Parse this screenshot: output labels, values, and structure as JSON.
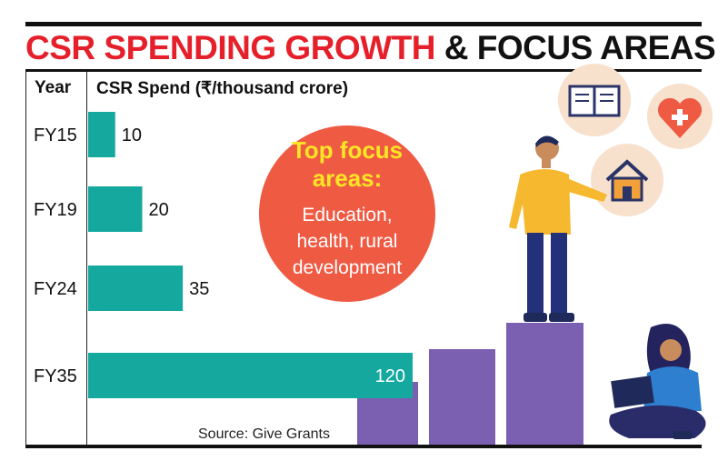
{
  "title": {
    "highlight": "CSR SPENDING GROWTH",
    "rest": " & FOCUS AREAS"
  },
  "table": {
    "year_header": "Year",
    "spend_header": "CSR Spend (₹/thousand crore)"
  },
  "focus": {
    "title_line1": "Top focus",
    "title_line2": "areas:",
    "line1": "Education,",
    "line2": "health, rural",
    "line3": "development"
  },
  "source": "Source: Give Grants",
  "colors": {
    "title_red": "#e5202a",
    "bar_teal": "#14a89e",
    "circle_red": "#ef5a43",
    "focus_yellow": "#ffe625",
    "step_purple": "#7b5fb0"
  },
  "chart_data": {
    "type": "bar",
    "orientation": "horizontal",
    "categories": [
      "FY15",
      "FY19",
      "FY24",
      "FY35"
    ],
    "values": [
      10,
      20,
      35,
      120
    ],
    "value_labels": [
      "10",
      "20",
      "35",
      "120"
    ],
    "title": "CSR SPENDING GROWTH & FOCUS AREAS",
    "xlabel": "CSR Spend (₹/thousand crore)",
    "ylabel": "Year",
    "xlim": [
      0,
      120
    ],
    "grid": false
  }
}
